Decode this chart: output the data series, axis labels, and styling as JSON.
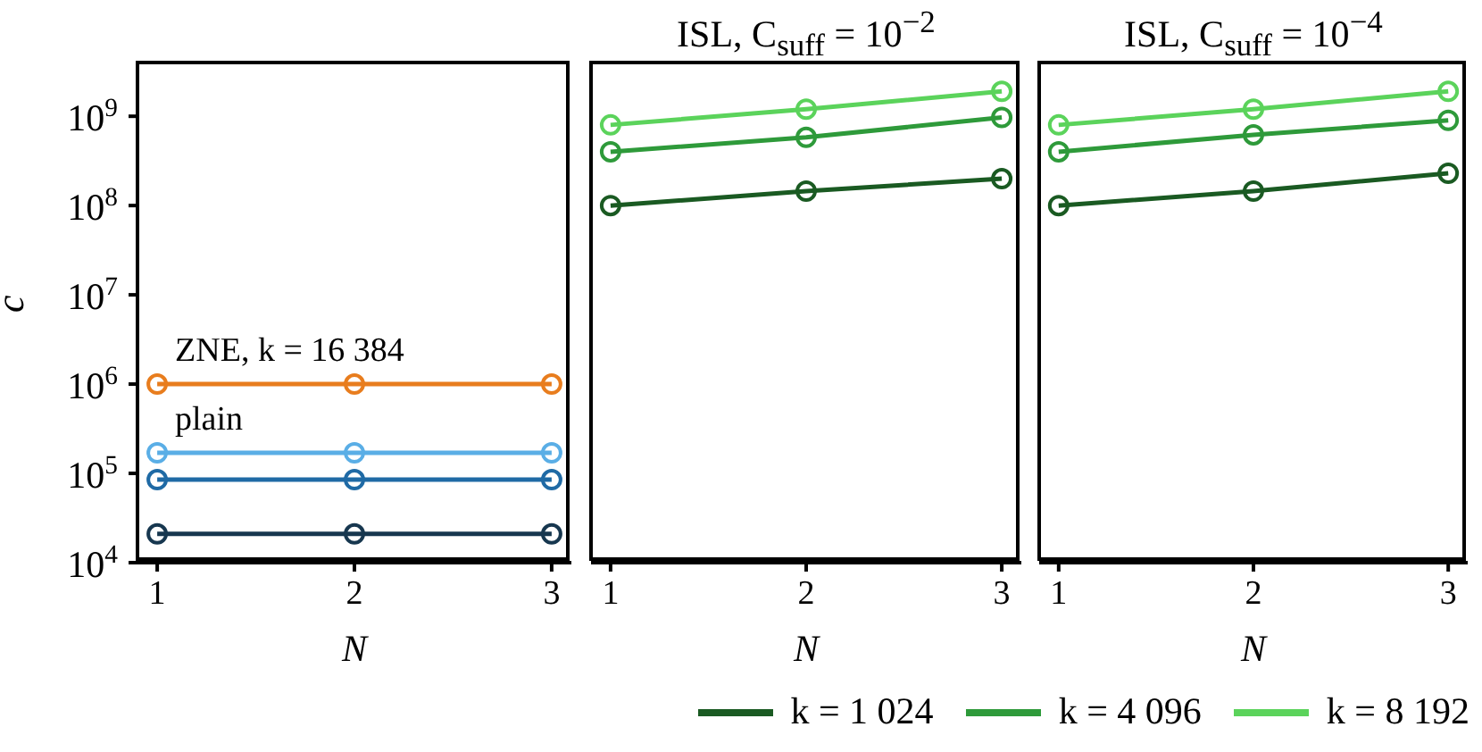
{
  "chart_data": [
    {
      "type": "line",
      "xlabel": "N",
      "ylabel": "c",
      "x": [
        1,
        2,
        3
      ],
      "xlim": [
        0.9,
        3.1
      ],
      "xticks": [
        1,
        2,
        3
      ],
      "ylim": [
        10000,
        4000000000
      ],
      "log": true,
      "yticks": [
        {
          "value": 10000,
          "label": "10$^{4}$"
        },
        {
          "value": 100000,
          "label": "10$^{5}$"
        },
        {
          "value": 1000000,
          "label": "10$^{6}$"
        },
        {
          "value": 10000000,
          "label": "10$^{7}$"
        },
        {
          "value": 100000000,
          "label": "10$^{8}$"
        },
        {
          "value": 1000000000,
          "label": "10$^{9}$"
        }
      ],
      "marker": "circle",
      "legend": false,
      "grid": false,
      "series": [
        {
          "name": "ZNE, k = 16 384",
          "color": "#e87d1e",
          "values": [
            1000000,
            1000000,
            1000000
          ]
        },
        {
          "name": "plain",
          "color": "#5aaee6",
          "values": [
            170000,
            170000,
            170000
          ]
        },
        {
          "color": "#1f6aa5",
          "values": [
            85000,
            85000,
            85000
          ]
        },
        {
          "color": "#17374f",
          "values": [
            21000,
            21000,
            21000
          ]
        }
      ]
    },
    {
      "type": "line",
      "title": "ISL, C$_{suff}$ = 10$^{−2}$",
      "xlabel": "N",
      "x": [
        1,
        2,
        3
      ],
      "xlim": [
        0.9,
        3.1
      ],
      "xticks": [
        1,
        2,
        3
      ],
      "ylim": [
        10000,
        4000000000
      ],
      "log": true,
      "tick_labels": "x",
      "yticks": [
        {
          "value": 10000,
          "label": null
        },
        {
          "value": 100000,
          "label": null
        },
        {
          "value": 1000000,
          "label": null
        },
        {
          "value": 10000000,
          "label": null
        },
        {
          "value": 100000000,
          "label": null
        },
        {
          "value": 1000000000,
          "label": null
        }
      ],
      "marker": "circle",
      "legend": false,
      "grid": false,
      "series": [
        {
          "color": "#1a5a22",
          "values": [
            100000000,
            145000000,
            200000000
          ]
        },
        {
          "color": "#2e9a3a",
          "values": [
            400000000,
            580000000,
            970000000
          ]
        },
        {
          "color": "#5bd35b",
          "values": [
            800000000,
            1200000000,
            1900000000
          ]
        }
      ]
    },
    {
      "type": "line",
      "title": "ISL, C$_{suff}$ = 10$^{−4}$",
      "xlabel": "N",
      "x": [
        1,
        2,
        3
      ],
      "xlim": [
        0.9,
        3.1
      ],
      "xticks": [
        1,
        2,
        3
      ],
      "ylim": [
        10000,
        4000000000
      ],
      "log": true,
      "tick_labels": "x",
      "yticks": [
        {
          "value": 10000,
          "label": null
        },
        {
          "value": 100000,
          "label": null
        },
        {
          "value": 1000000,
          "label": null
        },
        {
          "value": 10000000,
          "label": null
        },
        {
          "value": 100000000,
          "label": null
        },
        {
          "value": 1000000000,
          "label": null
        }
      ],
      "marker": "circle",
      "legend": "bottom",
      "grid": false,
      "series": [
        {
          "name": "k = 1 024",
          "color": "#1a5a22",
          "values": [
            100000000,
            145000000,
            230000000
          ]
        },
        {
          "name": "k = 4 096",
          "color": "#2e9a3a",
          "values": [
            400000000,
            620000000,
            900000000
          ]
        },
        {
          "name": "k = 8 192",
          "color": "#5bd35b",
          "values": [
            800000000,
            1200000000,
            1900000000
          ]
        }
      ]
    }
  ]
}
